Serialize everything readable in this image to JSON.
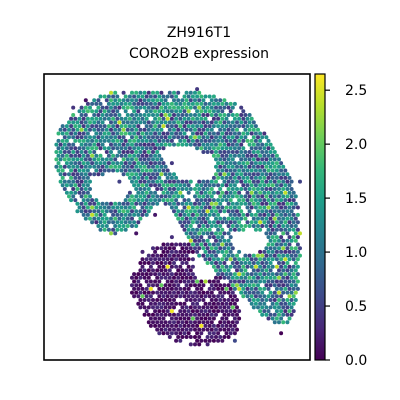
{
  "chart_data": {
    "type": "scatter",
    "title": [
      "ZH916T1",
      "CORO2B expression"
    ],
    "xlabel": "",
    "ylabel": "",
    "grid": false,
    "axis_ticks": false,
    "colormap": "viridis",
    "colorbar": {
      "range": [
        0.0,
        2.65
      ],
      "ticks": [
        0.0,
        0.5,
        1.0,
        1.5,
        2.0,
        2.5
      ],
      "tick_labels": [
        "0.0",
        "0.5",
        "1.0",
        "1.5",
        "2.0",
        "2.5"
      ]
    },
    "regions": [
      {
        "region": "upper tissue band",
        "expression_range": [
          0.2,
          2.0
        ],
        "typical_expression": 1.1,
        "hot_spots": [
          2.2,
          2.4
        ]
      },
      {
        "region": "lower-left tissue lobe",
        "expression_range": [
          0.0,
          0.6
        ],
        "typical_expression": 0.15,
        "hot_spots": [
          2.0,
          2.3,
          2.6
        ]
      }
    ]
  },
  "colors": {
    "colormap_stops": [
      "#440154",
      "#482878",
      "#3e4989",
      "#31688e",
      "#26828e",
      "#1f9e89",
      "#35b779",
      "#6ece58",
      "#b5de2b",
      "#fde725"
    ],
    "frame": "#000000",
    "background": "#ffffff"
  }
}
